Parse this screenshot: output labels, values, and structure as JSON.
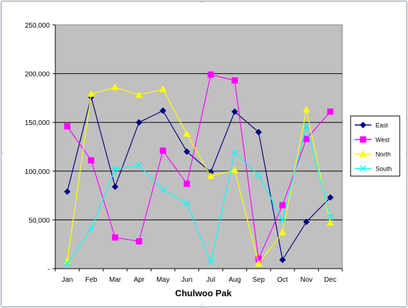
{
  "chart_data": {
    "type": "line",
    "title": "",
    "xlabel": "Chulwoo Pak",
    "ylabel": "",
    "categories": [
      "Jan",
      "Feb",
      "Mar",
      "Apr",
      "May",
      "Jun",
      "Jul",
      "Aug",
      "Sep",
      "Oct",
      "Nov",
      "Dec"
    ],
    "ylim": [
      0,
      250000
    ],
    "yticks": [
      0,
      50000,
      100000,
      150000,
      200000,
      250000
    ],
    "ytick_labels": [
      "-",
      "50,000",
      "100,000",
      "150,000",
      "200,000",
      "250,000"
    ],
    "grid": true,
    "legend_position": "right",
    "series": [
      {
        "name": "East",
        "color": "#000080",
        "marker": "diamond",
        "values": [
          79000,
          176000,
          84000,
          150000,
          162000,
          120000,
          99000,
          161000,
          140000,
          9000,
          48000,
          73000
        ]
      },
      {
        "name": "West",
        "color": "#ff00ff",
        "marker": "square",
        "values": [
          146000,
          111000,
          32000,
          28000,
          121000,
          87000,
          199000,
          193000,
          10000,
          65000,
          133000,
          161000
        ]
      },
      {
        "name": "North",
        "color": "#ffff00",
        "marker": "triangle",
        "values": [
          8000,
          179000,
          186000,
          178000,
          184000,
          138000,
          95000,
          101000,
          5000,
          37000,
          163000,
          47000
        ]
      },
      {
        "name": "South",
        "color": "#00ffff",
        "marker": "x",
        "values": [
          5000,
          41000,
          102000,
          106000,
          81000,
          67000,
          7000,
          119000,
          96000,
          50000,
          146000,
          53000
        ]
      }
    ]
  }
}
